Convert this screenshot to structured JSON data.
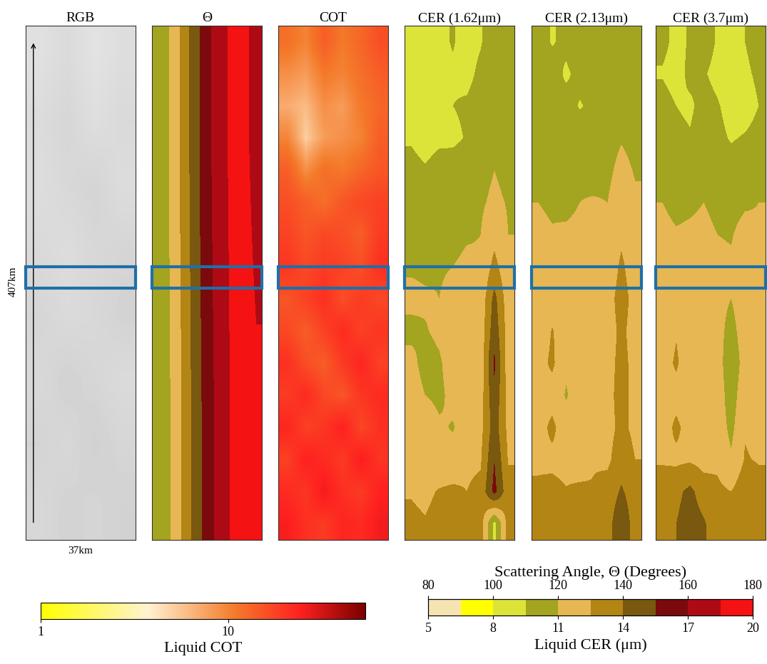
{
  "chart_data": [
    {
      "type": "heatmap",
      "title": "RGB",
      "tick_labels": false,
      "brightness": [
        [
          224,
          218,
          226,
          221
        ],
        [
          219,
          214,
          222,
          217
        ],
        [
          221,
          216,
          212,
          220
        ],
        [
          217,
          220,
          215,
          213
        ],
        [
          213,
          218,
          216,
          211
        ],
        [
          216,
          210,
          214,
          218
        ],
        [
          212,
          215,
          209,
          214
        ],
        [
          215,
          211,
          213,
          210
        ]
      ]
    },
    {
      "type": "heatmap",
      "title": "Θ",
      "tick_labels": false,
      "scattering_angle": [
        [
          113,
          121,
          133,
          146,
          157,
          166,
          172,
          173,
          166
        ],
        [
          112,
          120,
          131,
          144,
          155,
          164,
          171,
          175,
          172
        ]
      ]
    },
    {
      "type": "heatmap",
      "title": "COT",
      "tick_labels": false,
      "cot": [
        [
          12,
          10,
          14,
          11,
          13,
          16
        ],
        [
          9,
          8,
          11,
          10,
          12,
          14
        ],
        [
          7,
          6,
          9,
          8,
          11,
          13
        ],
        [
          10,
          5,
          8,
          9,
          10,
          14
        ],
        [
          14,
          9,
          12,
          11,
          13,
          15
        ],
        [
          16,
          14,
          12,
          15,
          17,
          18
        ],
        [
          18,
          15,
          17,
          16,
          14,
          19
        ],
        [
          20,
          17,
          19,
          18,
          16,
          21
        ],
        [
          15,
          18,
          21,
          16,
          19,
          17
        ],
        [
          17,
          14,
          18,
          22,
          18,
          20
        ],
        [
          21,
          16,
          14,
          19,
          23,
          18
        ],
        [
          19,
          22,
          17,
          15,
          20,
          22
        ],
        [
          23,
          18,
          20,
          24,
          17,
          21
        ],
        [
          18,
          24,
          22,
          19,
          25,
          20
        ],
        [
          22,
          20,
          26,
          21,
          19,
          24
        ],
        [
          25,
          21,
          19,
          23,
          22,
          26
        ]
      ]
    },
    {
      "type": "heatmap",
      "title": "CER (1.62μm)",
      "tick_labels": false,
      "cer": [
        [
          9.0,
          8.8,
          9.2,
          9.6,
          9.0,
          9.4,
          10.2,
          9.8
        ],
        [
          8.7,
          9.0,
          8.9,
          9.3,
          9.1,
          9.8,
          10.4,
          9.9
        ],
        [
          9.2,
          8.8,
          9.0,
          9.5,
          9.7,
          10.1,
          10.6,
          10.3
        ],
        [
          9.4,
          9.1,
          9.3,
          9.2,
          9.6,
          10.0,
          10.8,
          10.2
        ],
        [
          9.8,
          9.6,
          9.9,
          10.2,
          10.4,
          10.5,
          11.0,
          10.6
        ],
        [
          10.3,
          10.1,
          10.0,
          10.4,
          10.6,
          10.8,
          11.3,
          10.9
        ],
        [
          10.5,
          10.4,
          10.6,
          10.7,
          10.9,
          11.0,
          12.0,
          11.0
        ],
        [
          10.8,
          10.7,
          10.9,
          11.0,
          11.2,
          11.1,
          13.0,
          11.3
        ],
        [
          11.4,
          11.2,
          11.0,
          11.3,
          11.5,
          11.4,
          14.5,
          11.6
        ],
        [
          10.6,
          10.9,
          11.3,
          11.6,
          11.2,
          11.5,
          15.0,
          11.8
        ],
        [
          11.5,
          10.4,
          10.8,
          11.7,
          11.8,
          11.6,
          15.8,
          11.7
        ],
        [
          11.8,
          11.0,
          10.7,
          11.4,
          11.9,
          11.8,
          15.2,
          11.9
        ],
        [
          11.6,
          11.9,
          11.2,
          10.9,
          11.7,
          12.0,
          14.8,
          12.1
        ],
        [
          12.0,
          11.8,
          11.6,
          11.5,
          12.2,
          12.3,
          15.5,
          12.4
        ],
        [
          12.4,
          12.2,
          12.6,
          12.8,
          12.5,
          12.9,
          16.0,
          13.0
        ],
        [
          12.8,
          12.6,
          13.0,
          12.7,
          12.9,
          13.2,
          9.0,
          13.1
        ]
      ]
    },
    {
      "type": "heatmap",
      "title": "CER (2.13μm)",
      "tick_labels": false,
      "cer": [
        [
          10.0,
          9.4,
          9.8,
          10.2,
          9.6,
          10.0,
          10.4,
          10.1
        ],
        [
          9.6,
          10.1,
          9.3,
          9.9,
          10.3,
          9.7,
          10.5,
          10.2
        ],
        [
          10.2,
          9.5,
          10.0,
          9.4,
          9.8,
          10.2,
          10.6,
          10.4
        ],
        [
          10.4,
          10.0,
          9.7,
          10.3,
          10.1,
          10.5,
          10.9,
          10.6
        ],
        [
          10.6,
          10.4,
          10.5,
          10.8,
          10.6,
          10.7,
          11.4,
          10.9
        ],
        [
          11.0,
          10.8,
          10.7,
          11.0,
          11.1,
          11.0,
          11.8,
          11.2
        ],
        [
          11.3,
          11.1,
          11.2,
          11.3,
          11.4,
          11.3,
          12.2,
          11.4
        ],
        [
          11.5,
          11.6,
          11.4,
          11.5,
          11.6,
          11.4,
          12.8,
          11.6
        ],
        [
          11.8,
          11.6,
          11.7,
          11.9,
          11.7,
          11.8,
          13.2,
          11.9
        ],
        [
          11.4,
          12.6,
          11.6,
          11.8,
          12.0,
          11.7,
          12.9,
          11.8
        ],
        [
          11.9,
          12.8,
          11.2,
          11.5,
          12.1,
          11.9,
          13.0,
          12.0
        ],
        [
          12.0,
          11.8,
          10.9,
          11.6,
          12.2,
          12.0,
          13.1,
          11.9
        ],
        [
          11.8,
          12.9,
          11.5,
          11.3,
          11.9,
          12.1,
          12.8,
          12.2
        ],
        [
          12.3,
          12.1,
          12.0,
          11.8,
          12.4,
          12.2,
          13.3,
          12.5
        ],
        [
          12.7,
          13.0,
          12.6,
          12.8,
          12.6,
          13.1,
          14.2,
          13.2
        ],
        [
          13.0,
          12.8,
          13.3,
          12.9,
          13.0,
          13.4,
          15.2,
          13.3
        ]
      ]
    },
    {
      "type": "heatmap",
      "title": "CER (3.7μm)",
      "tick_labels": false,
      "cer": [
        [
          9.8,
          9.2,
          9.6,
          10.0,
          9.4,
          9.0,
          9.5,
          9.9
        ],
        [
          9.4,
          9.0,
          9.8,
          9.6,
          9.2,
          8.8,
          9.3,
          9.7
        ],
        [
          10.0,
          9.5,
          9.3,
          9.9,
          9.6,
          9.1,
          9.0,
          9.5
        ],
        [
          10.2,
          9.8,
          9.6,
          10.1,
          9.8,
          9.4,
          9.6,
          9.9
        ],
        [
          10.6,
          10.3,
          10.4,
          10.6,
          10.2,
          10.0,
          10.3,
          10.5
        ],
        [
          11.0,
          10.7,
          10.8,
          11.0,
          10.7,
          10.5,
          10.8,
          11.0
        ],
        [
          11.3,
          11.1,
          11.2,
          11.3,
          11.0,
          10.9,
          11.5,
          11.2
        ],
        [
          11.5,
          11.4,
          11.6,
          11.5,
          11.3,
          11.2,
          11.8,
          11.4
        ],
        [
          11.7,
          11.8,
          11.9,
          11.6,
          11.5,
          11.0,
          12.0,
          11.6
        ],
        [
          11.6,
          12.4,
          11.8,
          11.7,
          11.6,
          10.4,
          11.9,
          11.7
        ],
        [
          11.9,
          12.7,
          11.6,
          11.9,
          11.8,
          9.8,
          11.7,
          11.9
        ],
        [
          12.1,
          12.0,
          11.5,
          11.8,
          12.0,
          10.1,
          12.2,
          12.0
        ],
        [
          11.8,
          12.8,
          11.9,
          11.6,
          11.9,
          10.6,
          12.4,
          12.1
        ],
        [
          12.4,
          12.2,
          12.3,
          12.0,
          12.2,
          11.2,
          12.6,
          12.4
        ],
        [
          13.0,
          13.6,
          14.4,
          13.2,
          12.8,
          12.5,
          13.4,
          13.0
        ],
        [
          13.4,
          14.0,
          14.8,
          14.2,
          13.1,
          12.9,
          13.8,
          13.3
        ]
      ]
    }
  ],
  "xlim": [
    0,
    37
  ],
  "ylim": [
    0,
    407
  ],
  "x_size_label": "37km",
  "y_size_label": "407km",
  "highlight_km": [
    199,
    216
  ],
  "brightness_range": [
    0,
    255
  ],
  "cot_colorbar": {
    "label": "Liquid COT",
    "range": [
      1,
      54
    ],
    "ticks": [
      1,
      10
    ],
    "log": true
  },
  "cer_colorbar": {
    "label": "Liquid CER (μm)",
    "range": [
      5,
      20
    ],
    "ticks": [
      5,
      8,
      11,
      14,
      17,
      20
    ],
    "bounds": [
      5,
      6.5,
      8,
      9.5,
      11,
      12.5,
      14,
      15.5,
      17,
      18.5,
      20
    ],
    "colors": [
      "#f5e4b2",
      "#ffff00",
      "#dce43a",
      "#a3a420",
      "#e6b752",
      "#b38514",
      "#79580f",
      "#7a0a0c",
      "#ae0a16",
      "#f51212"
    ],
    "angle_label": "Scattering Angle, Θ (Degrees)",
    "angle_range": [
      80,
      180
    ],
    "angle_ticks": [
      80,
      100,
      120,
      140,
      160,
      180
    ],
    "angle_bounds": [
      80,
      90,
      100,
      110,
      120,
      130,
      140,
      150,
      160,
      170,
      180
    ]
  }
}
